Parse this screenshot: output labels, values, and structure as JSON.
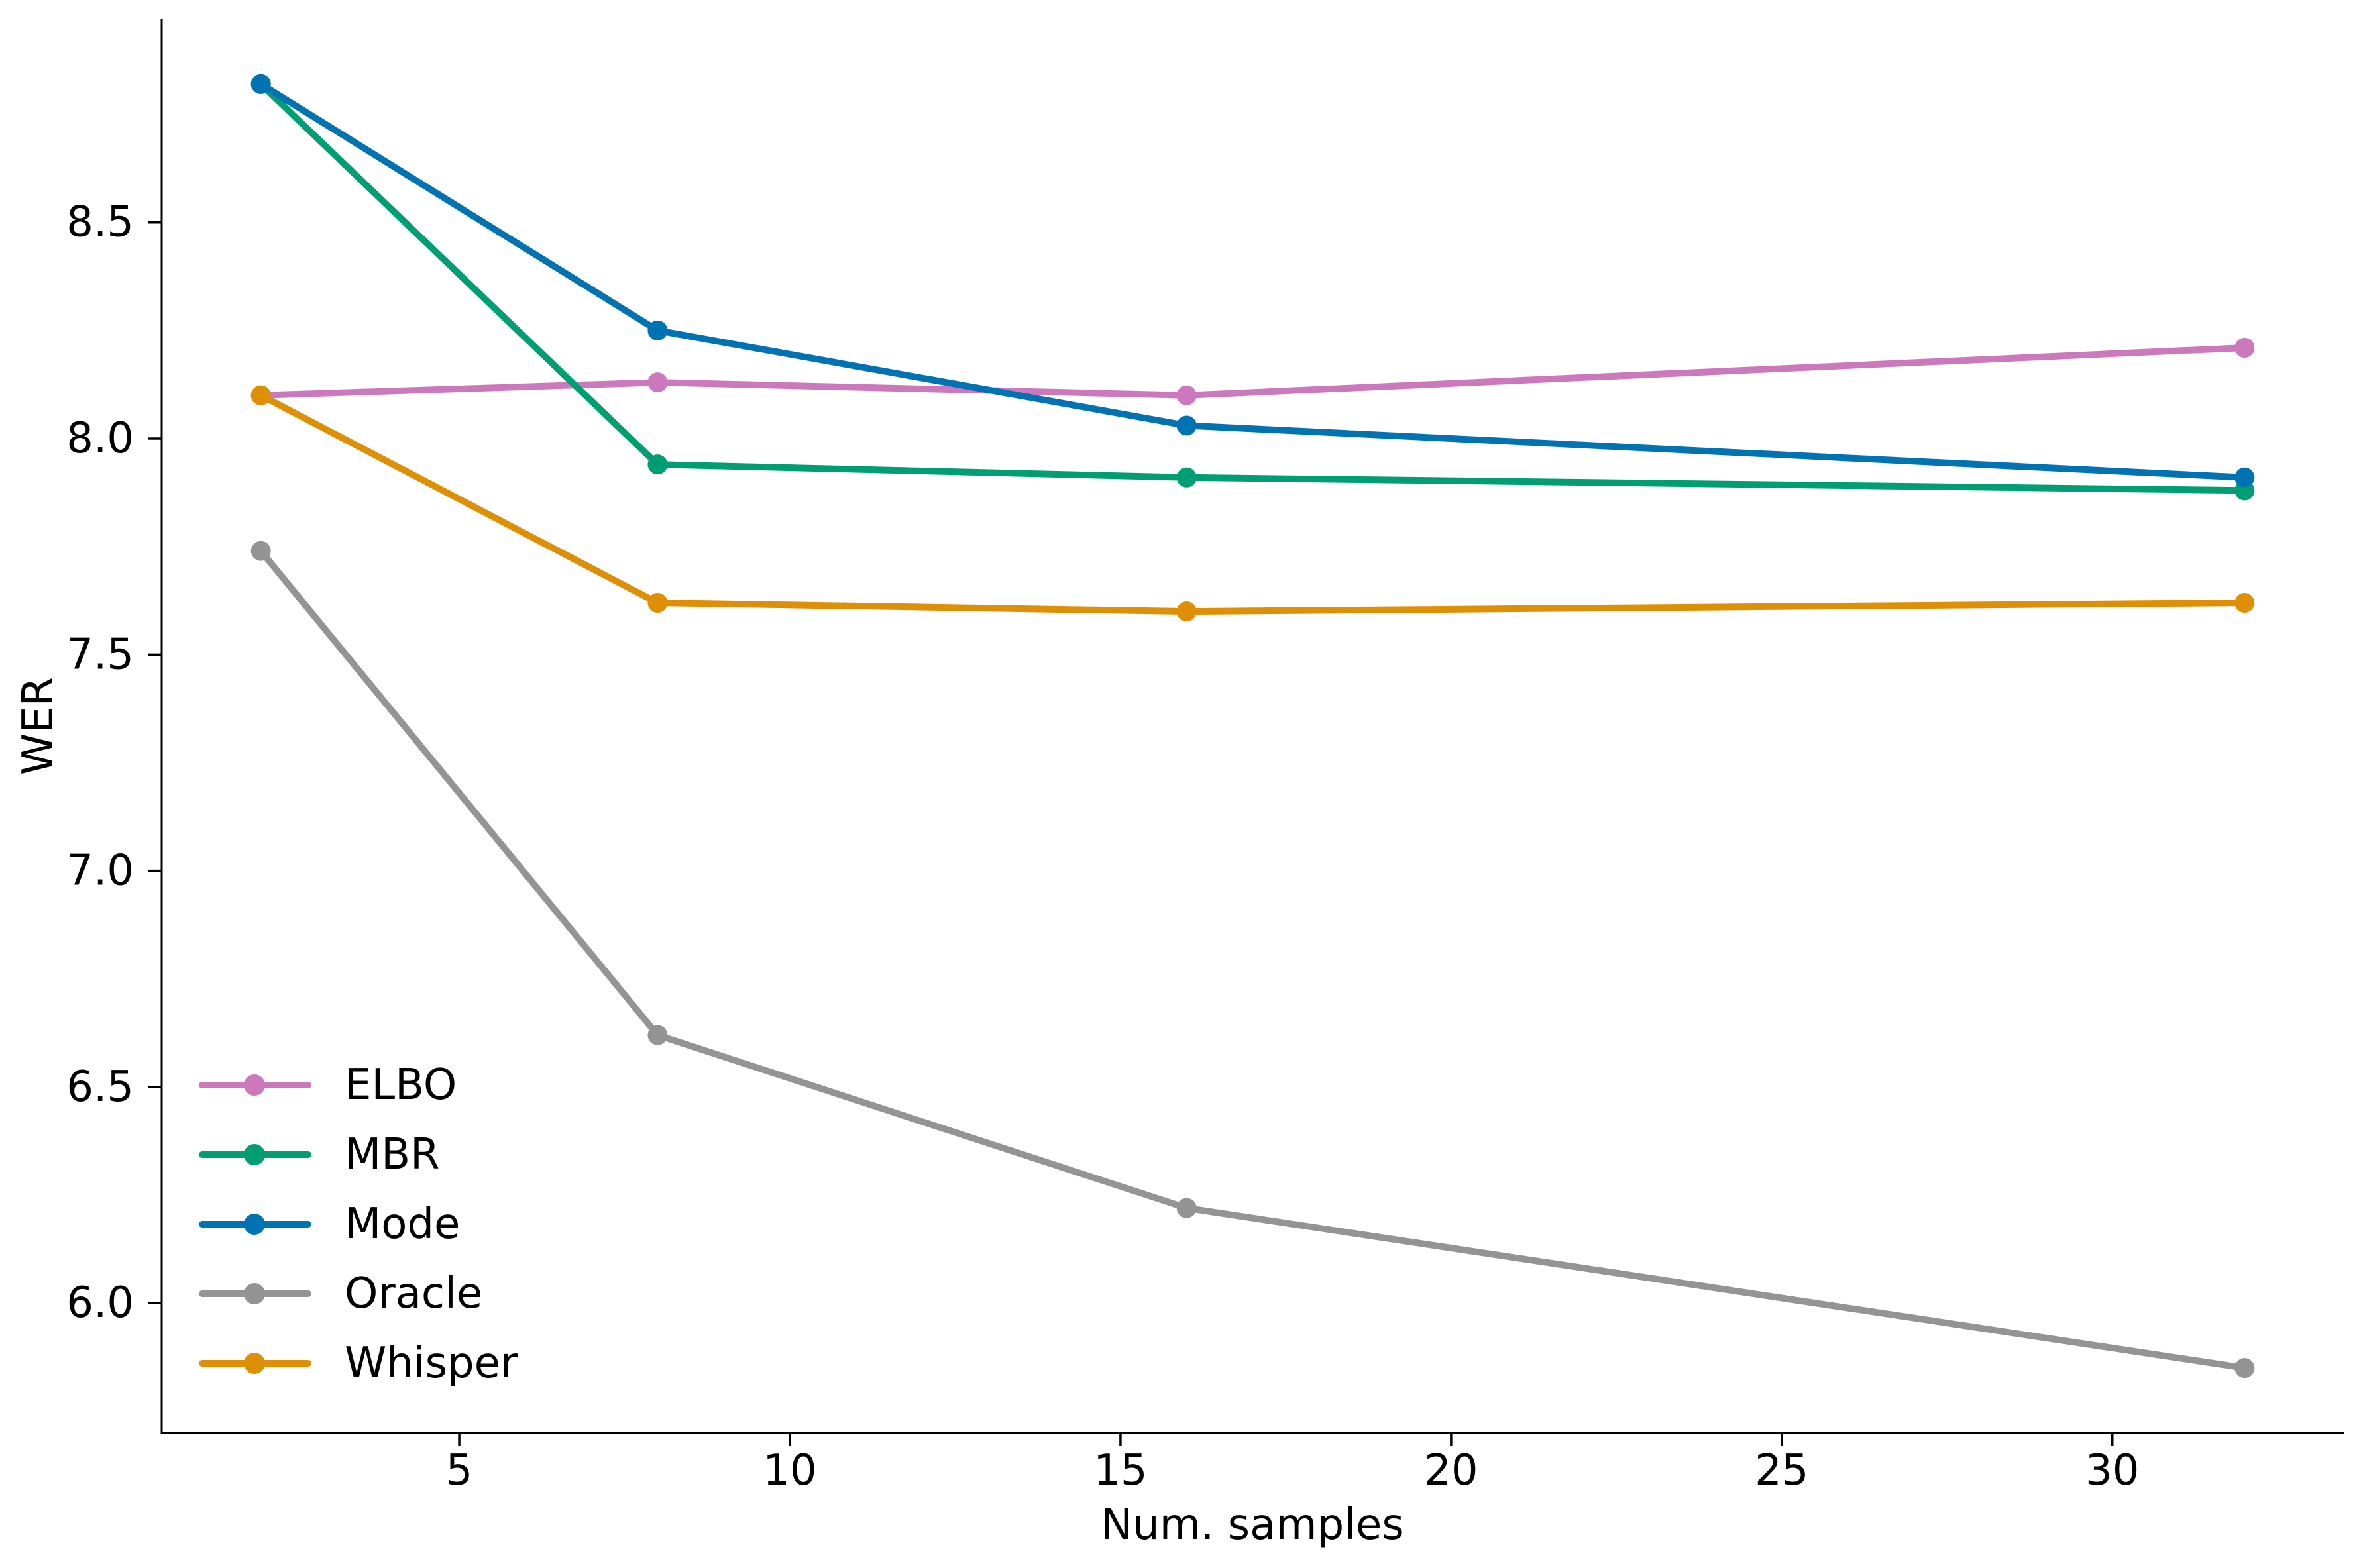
{
  "chart_data": {
    "type": "line",
    "title": "",
    "xlabel": "Num. samples",
    "ylabel": "WER",
    "x": [
      2,
      8,
      16,
      32
    ],
    "series": [
      {
        "name": "ELBO",
        "color": "#cc78bc",
        "values": [
          8.1,
          8.13,
          8.1,
          8.21
        ]
      },
      {
        "name": "MBR",
        "color": "#029e73",
        "values": [
          8.82,
          7.94,
          7.91,
          7.88
        ]
      },
      {
        "name": "Mode",
        "color": "#0173b2",
        "values": [
          8.82,
          8.25,
          8.03,
          7.91
        ]
      },
      {
        "name": "Oracle",
        "color": "#949494",
        "values": [
          7.74,
          6.62,
          6.22,
          5.85
        ]
      },
      {
        "name": "Whisper",
        "color": "#de8f05",
        "values": [
          8.1,
          7.62,
          7.6,
          7.62
        ]
      }
    ],
    "xticks": {
      "values": [
        5,
        10,
        15,
        20,
        25,
        30
      ],
      "labels": [
        "5",
        "10",
        "15",
        "20",
        "25",
        "30"
      ]
    },
    "yticks": {
      "values": [
        6.0,
        6.5,
        7.0,
        7.5,
        8.0,
        8.5
      ],
      "labels": [
        "6.0",
        "6.5",
        "7.0",
        "7.5",
        "8.0",
        "8.5"
      ]
    },
    "xlim": [
      0.5,
      33.5
    ],
    "ylim": [
      5.7,
      8.97
    ],
    "grid": false,
    "legend_position": "lower-left",
    "marker": "circle",
    "axis_color": "#000000",
    "background": "#ffffff"
  }
}
